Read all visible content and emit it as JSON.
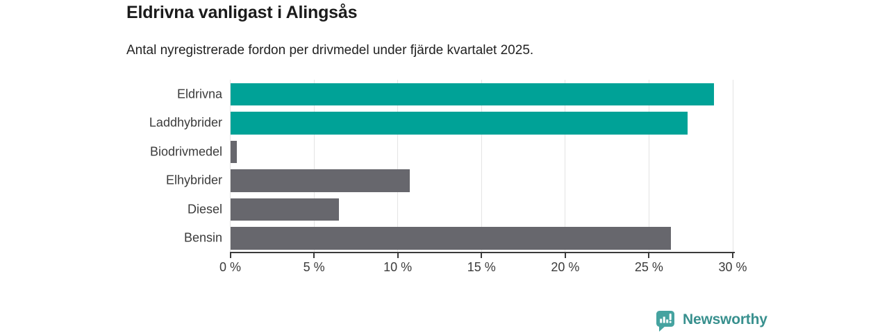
{
  "title": "Eldrivna vanligast i Alingsås",
  "subtitle": "Antal nyregistrerade fordon per drivmedel under fjärde kvartalet 2025.",
  "chart_data": {
    "type": "bar",
    "orientation": "horizontal",
    "categories": [
      "Eldrivna",
      "Laddhybrider",
      "Biodrivmedel",
      "Elhybrider",
      "Diesel",
      "Bensin"
    ],
    "values": [
      28.9,
      27.3,
      0.4,
      10.7,
      6.5,
      26.3
    ],
    "unit": "%",
    "bar_colors": [
      "teal",
      "teal",
      "gray",
      "gray",
      "gray",
      "gray"
    ],
    "palette": {
      "teal": "#00a297",
      "gray": "#67676d"
    },
    "xlim": [
      0,
      30
    ],
    "x_ticks": [
      0,
      5,
      10,
      15,
      20,
      25,
      30
    ],
    "x_tick_labels": [
      "0 %",
      "5 %",
      "10 %",
      "15 %",
      "20 %",
      "25 %",
      "30 %"
    ],
    "grid": "vertical-light",
    "legend": "none"
  },
  "colors": {
    "grid": "#e4e4e4",
    "axis": "#3a3a3a",
    "title_text": "#1b1b1b",
    "label_text": "#3b3b3b",
    "logo_icon": "#45a3a0",
    "logo_text": "#38908e"
  },
  "footer": {
    "brand": "Newsworthy"
  }
}
